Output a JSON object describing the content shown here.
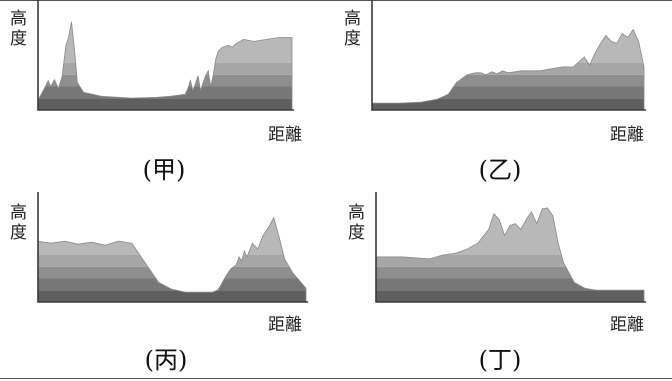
{
  "chart_data": [
    {
      "type": "area",
      "caption": "(甲)",
      "ylabel": "高度",
      "xlabel": "距離",
      "grid": false,
      "x": [
        0,
        2.5,
        4,
        5,
        6.5,
        8,
        9.5,
        11,
        12,
        13.2,
        14.5,
        15.5,
        18,
        25,
        37,
        47,
        52,
        58,
        59,
        60,
        61,
        62,
        63,
        64,
        65,
        66,
        67,
        68,
        69,
        70,
        71,
        72.5,
        75,
        76.5,
        78,
        81,
        85,
        90,
        95,
        100
      ],
      "y": [
        10,
        22,
        30,
        24,
        31,
        22,
        34,
        66,
        74,
        90,
        58,
        28,
        18,
        14,
        12,
        13,
        14,
        16,
        22,
        30,
        20,
        27,
        35,
        20,
        28,
        35,
        40,
        24,
        36,
        52,
        60,
        64,
        66,
        64,
        68,
        72,
        70,
        72,
        74,
        74
      ]
    },
    {
      "type": "area",
      "caption": "(乙)",
      "ylabel": "高度",
      "xlabel": "距離",
      "grid": false,
      "x": [
        0,
        10,
        18,
        24,
        28,
        31,
        35,
        38,
        40,
        42,
        44,
        46,
        48,
        50,
        55,
        62,
        66,
        70,
        74,
        78,
        80,
        82,
        84,
        86,
        88,
        90,
        92,
        94,
        96,
        98,
        100
      ],
      "y": [
        7,
        7,
        8,
        11,
        16,
        28,
        36,
        38,
        38,
        36,
        39,
        37,
        40,
        38,
        40,
        40,
        42,
        44,
        44,
        54,
        46,
        58,
        68,
        76,
        70,
        68,
        78,
        74,
        82,
        70,
        44
      ]
    },
    {
      "type": "area",
      "caption": "(丙)",
      "ylabel": "高度",
      "xlabel": "距離",
      "grid": false,
      "x": [
        0,
        5,
        10,
        15,
        20,
        25,
        30,
        35,
        40,
        45,
        50,
        55,
        60,
        65,
        67,
        68,
        70,
        72,
        74,
        75,
        76,
        77,
        78,
        80,
        82,
        84,
        86,
        88,
        90,
        92,
        95,
        100
      ],
      "y": [
        62,
        60,
        62,
        59,
        61,
        58,
        62,
        60,
        40,
        20,
        13,
        10,
        10,
        10,
        12,
        16,
        26,
        34,
        38,
        46,
        42,
        52,
        46,
        60,
        54,
        68,
        76,
        86,
        66,
        44,
        30,
        14
      ]
    },
    {
      "type": "area",
      "caption": "(丁)",
      "ylabel": "高度",
      "xlabel": "距離",
      "grid": false,
      "x": [
        0,
        10,
        20,
        25,
        30,
        34,
        38,
        42,
        44,
        46,
        48,
        50,
        52,
        54,
        56,
        58,
        60,
        62,
        64,
        66,
        68,
        70,
        74,
        78,
        82,
        90,
        100
      ],
      "y": [
        46,
        46,
        44,
        48,
        50,
        54,
        60,
        74,
        90,
        84,
        68,
        78,
        80,
        74,
        84,
        92,
        80,
        95,
        96,
        88,
        60,
        40,
        20,
        14,
        12,
        12,
        12
      ]
    }
  ]
}
